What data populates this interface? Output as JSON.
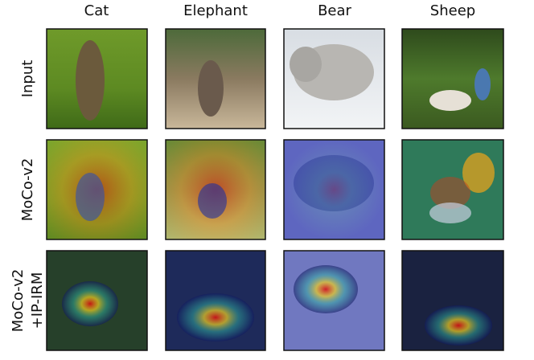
{
  "columns": [
    "Cat",
    "Elephant",
    "Bear",
    "Sheep"
  ],
  "rows": [
    {
      "label_lines": [
        "Input"
      ]
    },
    {
      "label_lines": [
        "MoCo-v2"
      ]
    },
    {
      "label_lines": [
        "MoCo-v2",
        "+IP-IRM"
      ]
    }
  ]
}
